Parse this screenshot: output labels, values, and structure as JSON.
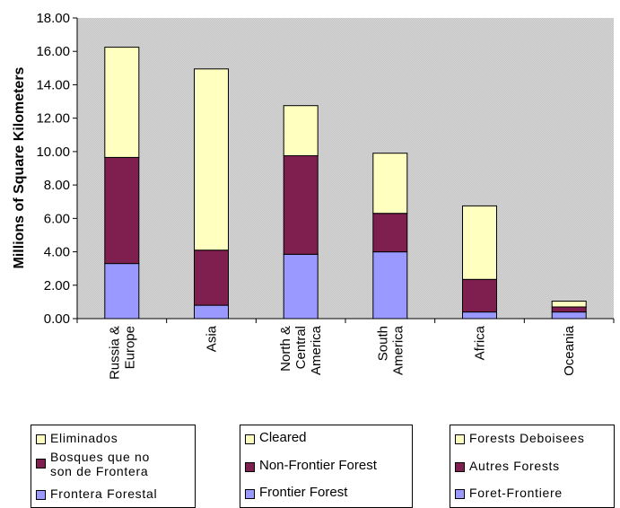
{
  "chart_data": {
    "type": "bar",
    "stacked": true,
    "title": "",
    "xlabel": "",
    "ylabel": "Millions of Square Kilometers",
    "ylim": [
      0,
      18
    ],
    "yticks": [
      "0.00",
      "2.00",
      "4.00",
      "6.00",
      "8.00",
      "10.00",
      "12.00",
      "14.00",
      "16.00",
      "18.00"
    ],
    "categories": [
      "Russia &\nEurope",
      "Asia",
      "North &\nCentral\nAmerica",
      "South\nAmerica",
      "Africa",
      "Oceania"
    ],
    "series": [
      {
        "name": "Frontier Forest",
        "color": "#9999ff",
        "values": [
          3.3,
          0.8,
          3.85,
          4.0,
          0.4,
          0.4
        ]
      },
      {
        "name": "Non-Frontier Forest",
        "color": "#7f1f4f",
        "values": [
          6.35,
          3.3,
          5.9,
          2.3,
          1.95,
          0.3
        ]
      },
      {
        "name": "Cleared",
        "color": "#ffffc0",
        "values": [
          6.6,
          10.85,
          3.0,
          3.6,
          4.4,
          0.35
        ]
      }
    ],
    "grid": false,
    "plot_background": "#c0c0c0",
    "legend_placement": "bottom"
  },
  "legends": [
    {
      "items": [
        "Eliminados",
        "Bosques que no\nson de Frontera",
        "Frontera Forestal"
      ]
    },
    {
      "items": [
        "Cleared",
        "Non-Frontier Forest",
        "Frontier Forest"
      ]
    },
    {
      "items": [
        "Forests Deboisees",
        "Autres Forests",
        "Foret-Frontiere"
      ]
    }
  ]
}
